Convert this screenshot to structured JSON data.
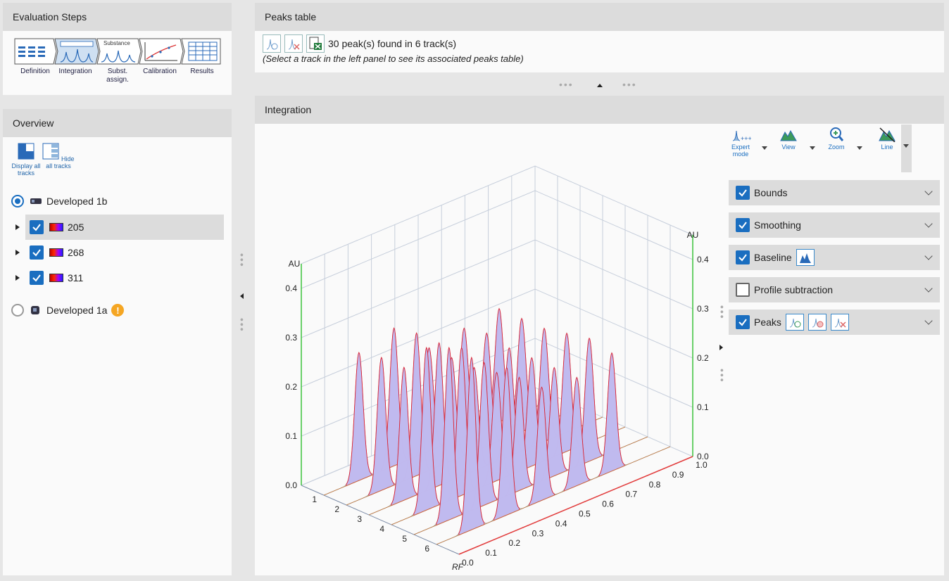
{
  "evaluation_steps": {
    "title": "Evaluation Steps",
    "substance_caption": "Substance",
    "steps": [
      {
        "label": "Definition"
      },
      {
        "label": "Integration"
      },
      {
        "label": "Subst. assign."
      },
      {
        "label": "Calibration"
      },
      {
        "label": "Results"
      }
    ]
  },
  "overview": {
    "title": "Overview",
    "display_all": "Display all tracks",
    "hide_all": "Hide all tracks",
    "plates": [
      {
        "name": "Developed 1b",
        "selected": true,
        "tracks": [
          "205",
          "268",
          "311"
        ]
      },
      {
        "name": "Developed 1a",
        "selected": false,
        "warning": "!"
      }
    ]
  },
  "peaks_table": {
    "title": "Peaks table",
    "status": "30 peak(s) found in 6 track(s)",
    "hint": "(Select a track in the left panel to see its associated peaks table)"
  },
  "integration": {
    "title": "Integration",
    "toolbar": [
      {
        "label": "Expert mode"
      },
      {
        "label": "View"
      },
      {
        "label": "Zoom"
      },
      {
        "label": "Line"
      }
    ],
    "options": [
      {
        "label": "Bounds",
        "checked": true
      },
      {
        "label": "Smoothing",
        "checked": true
      },
      {
        "label": "Baseline",
        "checked": true
      },
      {
        "label": "Profile subtraction",
        "checked": false
      },
      {
        "label": "Peaks",
        "checked": true
      }
    ]
  },
  "chart_data": {
    "type": "area",
    "title": "",
    "ylabel": "AU",
    "xlabel": "RF",
    "y_ticks": [
      "0.0",
      "0.1",
      "0.2",
      "0.3",
      "0.4"
    ],
    "x_ticks": [
      "0.0",
      "0.1",
      "0.2",
      "0.3",
      "0.4",
      "0.5",
      "0.6",
      "0.7",
      "0.8",
      "0.9",
      "1.0"
    ],
    "track_ticks": [
      "1",
      "2",
      "3",
      "4",
      "5",
      "6"
    ],
    "ylim": [
      0,
      0.45
    ],
    "xlim": [
      0,
      1.0
    ],
    "series": [
      {
        "values": [
          0.26,
          0.28,
          0.21,
          0.22,
          0.23
        ]
      },
      {
        "values": [
          0.27,
          0.29,
          0.21,
          0.23,
          0.23
        ]
      },
      {
        "values": [
          0.27,
          0.29,
          0.21,
          0.22,
          0.23
        ]
      },
      {
        "values": [
          0.33,
          0.3,
          0.22,
          0.22,
          0.24
        ]
      },
      {
        "values": [
          0.35,
          0.29,
          0.23,
          0.22,
          0.25
        ]
      },
      {
        "values": [
          0.35,
          0.3,
          0.23,
          0.22,
          0.24
        ]
      }
    ],
    "peak_rf": [
      0.15,
      0.3,
      0.45,
      0.6,
      0.75
    ]
  }
}
